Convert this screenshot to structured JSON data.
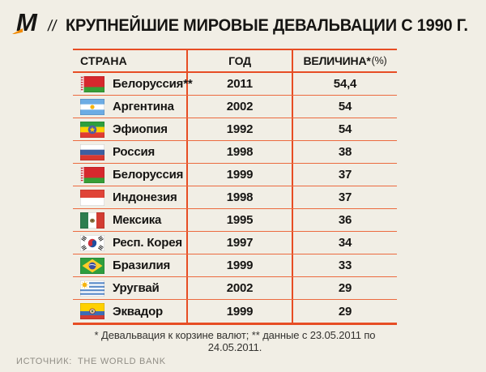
{
  "header": {
    "logo_letter": "М",
    "separator": "//",
    "title": "КРУПНЕЙШИЕ МИРОВЫЕ ДЕВАЛЬВАЦИИ С 1990 Г."
  },
  "table": {
    "col_country": "СТРАНА",
    "col_year": "ГОД",
    "col_value": "ВЕЛИЧИНА*",
    "col_value_suffix": "(%)",
    "rows": [
      {
        "flag": "flag-belarus",
        "country": "Белоруссия**",
        "year": "2011",
        "value": "54,4"
      },
      {
        "flag": "flag-argentina",
        "country": "Аргентина",
        "year": "2002",
        "value": "54"
      },
      {
        "flag": "flag-ethiopia",
        "country": "Эфиопия",
        "year": "1992",
        "value": "54"
      },
      {
        "flag": "flag-russia",
        "country": "Россия",
        "year": "1998",
        "value": "38"
      },
      {
        "flag": "flag-belarus",
        "country": "Белоруссия",
        "year": "1999",
        "value": "37"
      },
      {
        "flag": "flag-indonesia",
        "country": "Индонезия",
        "year": "1998",
        "value": "37"
      },
      {
        "flag": "flag-mexico",
        "country": "Мексика",
        "year": "1995",
        "value": "36"
      },
      {
        "flag": "flag-south-korea",
        "country": "Респ. Корея",
        "year": "1997",
        "value": "34"
      },
      {
        "flag": "flag-brazil",
        "country": "Бразилия",
        "year": "1999",
        "value": "33"
      },
      {
        "flag": "flag-uruguay",
        "country": "Уругвай",
        "year": "2002",
        "value": "29"
      },
      {
        "flag": "flag-ecuador",
        "country": "Эквадор",
        "year": "1999",
        "value": "29"
      }
    ]
  },
  "footnote": "* Девальвация к корзине валют;  ** данные с 23.05.2011 по 24.05.2011.",
  "source": {
    "label": "ИСТОЧНИК:",
    "value": "THE WORLD BANK"
  },
  "colors": {
    "accent_orange": "#E74D24",
    "row_line": "#EC6A3F",
    "background": "#F1EEE5",
    "logo_accent": "#F18A00",
    "source_gray": "#908D85"
  }
}
